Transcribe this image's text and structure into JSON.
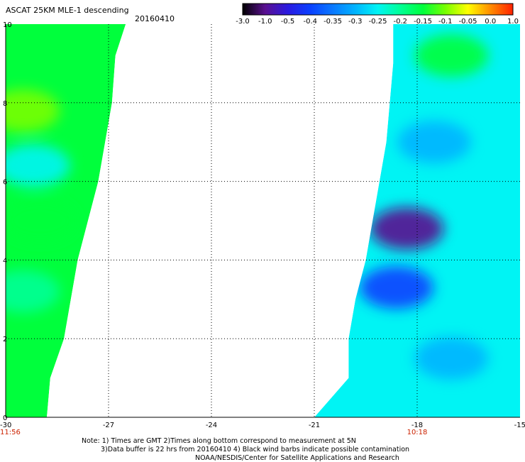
{
  "header": {
    "title": "ASCAT 25KM MLE-1 descending",
    "date": "20160410"
  },
  "colorbar": {
    "labels": [
      "-3.0",
      "-1.0",
      "-0.5",
      "-0.4",
      "-0.35",
      "-0.3",
      "-0.25",
      "-0.2",
      "-0.15",
      "-0.1",
      "-0.05",
      "0.0",
      "1.0"
    ],
    "colors": [
      "#000000",
      "#5a1090",
      "#2a1ae0",
      "#0a40ff",
      "#0a78ff",
      "#00b4ff",
      "#00f4f4",
      "#00ff96",
      "#00ff3c",
      "#78ff00",
      "#ffff00",
      "#ff8c00",
      "#ff2000"
    ]
  },
  "chart_data": {
    "type": "heatmap",
    "title": "ASCAT 25KM MLE-1 descending",
    "xlim": [
      -30,
      -15
    ],
    "ylim": [
      0,
      10
    ],
    "x_ticks": [
      "-30",
      "-27",
      "-24",
      "-21",
      "-18",
      "-15"
    ],
    "y_ticks": [
      "0",
      "2",
      "4",
      "6",
      "8",
      "10"
    ],
    "time_labels": [
      {
        "x": -30,
        "text": "11:56"
      },
      {
        "x": -18,
        "text": "10:18"
      }
    ],
    "grid": true,
    "swaths": [
      {
        "name": "west",
        "polygon": [
          [
            -30,
            10
          ],
          [
            -26.5,
            10
          ],
          [
            -26.8,
            9.2
          ],
          [
            -26.9,
            8
          ],
          [
            -27.1,
            7
          ],
          [
            -27.3,
            6
          ],
          [
            -27.6,
            5
          ],
          [
            -27.9,
            4
          ],
          [
            -28.1,
            3
          ],
          [
            -28.3,
            2
          ],
          [
            -28.7,
            1
          ],
          [
            -28.8,
            0
          ],
          [
            -30,
            0
          ]
        ],
        "base_value": -0.15,
        "features": [
          {
            "x": -29.5,
            "y": 7.8,
            "value": -0.1
          },
          {
            "x": -29.2,
            "y": 6.4,
            "value": -0.25
          },
          {
            "x": -29.0,
            "y": 5.0,
            "value": -0.12
          },
          {
            "x": -29.5,
            "y": 3.2,
            "value": -0.2
          }
        ]
      },
      {
        "name": "east",
        "polygon": [
          [
            -18.7,
            10
          ],
          [
            -15,
            10
          ],
          [
            -15,
            0
          ],
          [
            -21,
            0
          ],
          [
            -20,
            1
          ],
          [
            -20,
            2
          ],
          [
            -19.8,
            3
          ],
          [
            -19.5,
            4
          ],
          [
            -19.3,
            5
          ],
          [
            -19.1,
            6
          ],
          [
            -18.9,
            7
          ],
          [
            -18.8,
            8
          ],
          [
            -18.7,
            9
          ]
        ],
        "base_value": -0.25,
        "features": [
          {
            "x": -18.3,
            "y": 4.8,
            "value": -1.0
          },
          {
            "x": -18.6,
            "y": 3.3,
            "value": -0.4
          },
          {
            "x": -17.0,
            "y": 9.2,
            "value": -0.15
          },
          {
            "x": -17.5,
            "y": 7.0,
            "value": -0.3
          },
          {
            "x": -17.0,
            "y": 1.5,
            "value": -0.27
          }
        ]
      }
    ]
  },
  "notes": {
    "line1": "Note: 1) Times are GMT 2)Times along bottom correspond to measurement at 5N",
    "line2": "3)Data buffer is 22 hrs from 20160410 4) Black wind barbs indicate possible contamination",
    "line3": "NOAA/NESDIS/Center for Satellite Applications and Research"
  }
}
